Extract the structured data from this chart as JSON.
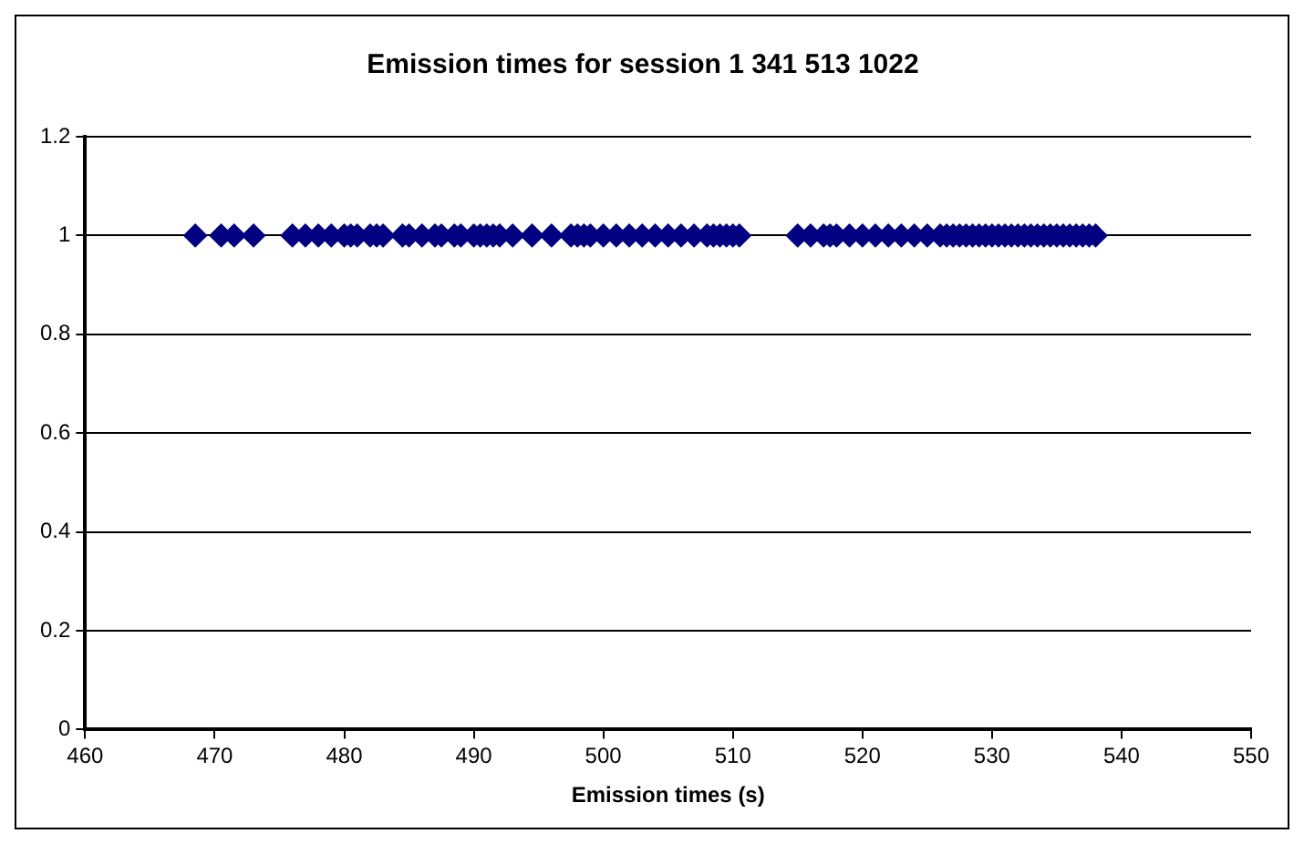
{
  "chart_data": {
    "type": "scatter",
    "title": "Emission times for session 1 341 513 1022",
    "xlabel": "Emission times (s)",
    "x": [
      468.5,
      470.5,
      471.5,
      473,
      476,
      477,
      478,
      479,
      480,
      480.5,
      481,
      482,
      482.5,
      483,
      484.5,
      485,
      486,
      487,
      487.5,
      488.5,
      489,
      490,
      490.5,
      491,
      491.5,
      492,
      493,
      494.5,
      496,
      497.5,
      498,
      498.5,
      499,
      500,
      501,
      502,
      503,
      504,
      505,
      506,
      507,
      508,
      508.5,
      509,
      509.5,
      510,
      510.5,
      515,
      516,
      517,
      517.5,
      518,
      519,
      520,
      521,
      522,
      523,
      524,
      525,
      526,
      526.5,
      527,
      527.5,
      528,
      528.5,
      529,
      529.5,
      530,
      530.5,
      531,
      531.5,
      532,
      532.5,
      533,
      533.5,
      534,
      534.5,
      535,
      535.5,
      536,
      536.5,
      537,
      537.5,
      538
    ],
    "values": [
      1,
      1,
      1,
      1,
      1,
      1,
      1,
      1,
      1,
      1,
      1,
      1,
      1,
      1,
      1,
      1,
      1,
      1,
      1,
      1,
      1,
      1,
      1,
      1,
      1,
      1,
      1,
      1,
      1,
      1,
      1,
      1,
      1,
      1,
      1,
      1,
      1,
      1,
      1,
      1,
      1,
      1,
      1,
      1,
      1,
      1,
      1,
      1,
      1,
      1,
      1,
      1,
      1,
      1,
      1,
      1,
      1,
      1,
      1,
      1,
      1,
      1,
      1,
      1,
      1,
      1,
      1,
      1,
      1,
      1,
      1,
      1,
      1,
      1,
      1,
      1,
      1,
      1,
      1,
      1,
      1,
      1,
      1,
      1
    ],
    "color": "#000080",
    "marker": "diamond",
    "xlim": [
      460,
      550
    ],
    "xticks": [
      460,
      470,
      480,
      490,
      500,
      510,
      520,
      530,
      540,
      550
    ],
    "ylim": [
      0,
      1.2
    ],
    "yticks": [
      0,
      0.2,
      0.4,
      0.6,
      0.8,
      1,
      1.2
    ],
    "grid": "y",
    "legend": false
  }
}
